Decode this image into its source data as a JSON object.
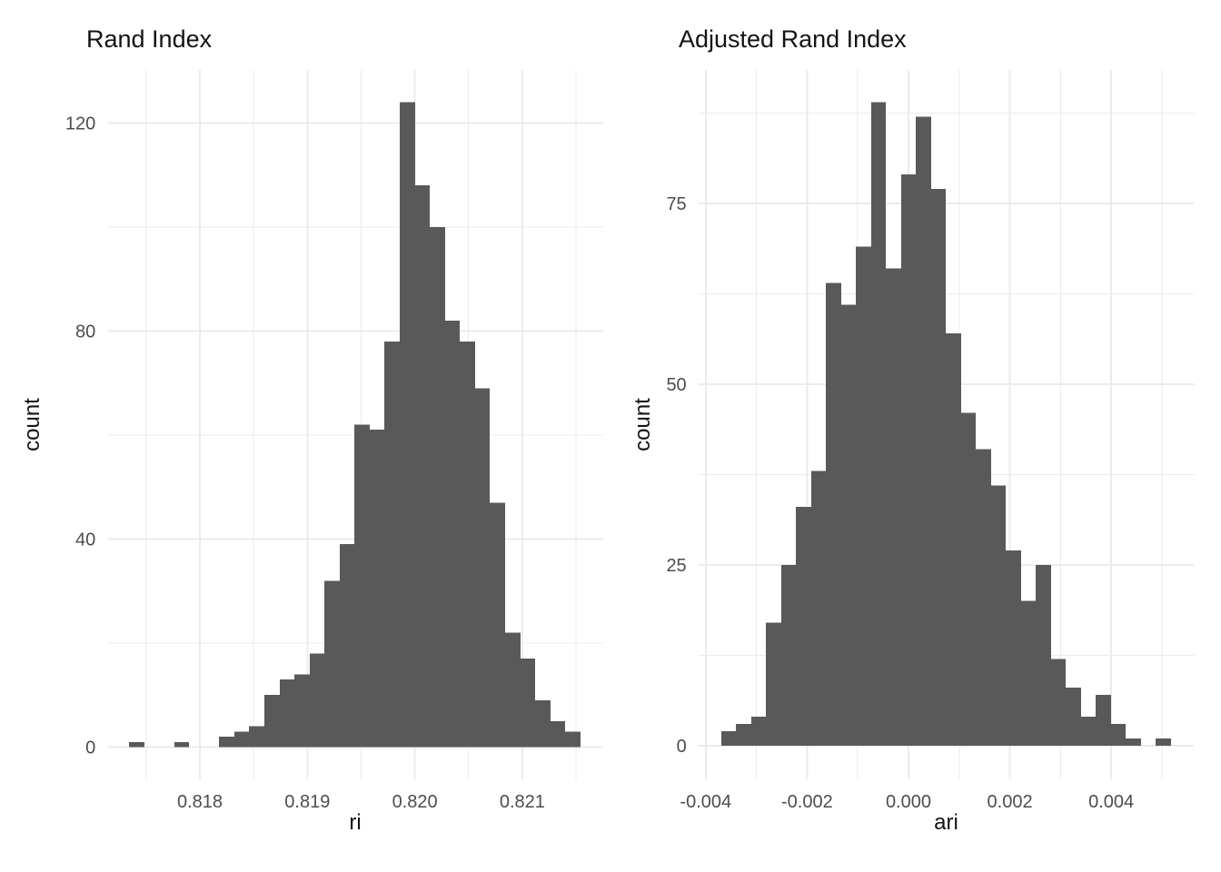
{
  "figure": {
    "background": "#FFFFFF",
    "description": "Two side-by-side histograms of clustering agreement metrics"
  },
  "style": {
    "bar_color": "#595959",
    "grid_color": "#EBEBEB",
    "tick_label_color": "#4D4D4D",
    "text_color": "#141414"
  },
  "chart_data": [
    {
      "type": "bar",
      "subtype": "histogram",
      "title": "Rand Index",
      "xlabel": "ri",
      "ylabel": "count",
      "grid": true,
      "legend_position": "none",
      "bin_start": 0.81734,
      "bin_width": 0.00014,
      "counts": [
        1,
        0,
        0,
        1,
        0,
        0,
        2,
        3,
        4,
        10,
        13,
        14,
        18,
        32,
        39,
        62,
        61,
        78,
        124,
        108,
        100,
        82,
        78,
        69,
        47,
        22,
        17,
        9,
        5,
        3
      ],
      "xlim": [
        0.81714,
        0.82175
      ],
      "ylim": [
        -6.2,
        130.2
      ],
      "x_ticks": [
        {
          "value": 0.818,
          "label": "0.818"
        },
        {
          "value": 0.819,
          "label": "0.819"
        },
        {
          "value": 0.82,
          "label": "0.820"
        },
        {
          "value": 0.821,
          "label": "0.821"
        }
      ],
      "x_minor": [
        0.8175,
        0.8185,
        0.8195,
        0.8205,
        0.8215
      ],
      "y_ticks": [
        {
          "value": 0,
          "label": "0"
        },
        {
          "value": 40,
          "label": "40"
        },
        {
          "value": 80,
          "label": "80"
        },
        {
          "value": 120,
          "label": "120"
        }
      ],
      "y_minor": [
        20,
        60,
        100
      ]
    },
    {
      "type": "bar",
      "subtype": "histogram",
      "title": "Adjusted Rand Index",
      "xlabel": "ari",
      "ylabel": "count",
      "grid": true,
      "legend_position": "none",
      "bin_start": -0.0037,
      "bin_width": 0.000296,
      "counts": [
        2,
        3,
        4,
        17,
        25,
        33,
        38,
        64,
        61,
        69,
        89,
        66,
        79,
        87,
        77,
        57,
        46,
        41,
        36,
        27,
        20,
        25,
        12,
        8,
        4,
        7,
        3,
        1,
        0,
        1
      ],
      "xlim": [
        -0.004145,
        0.005635
      ],
      "ylim": [
        -4.67,
        93.45
      ],
      "x_ticks": [
        {
          "value": -0.004,
          "label": "-0.004"
        },
        {
          "value": -0.002,
          "label": "-0.002"
        },
        {
          "value": 0.0,
          "label": "0.000"
        },
        {
          "value": 0.002,
          "label": "0.002"
        },
        {
          "value": 0.004,
          "label": "0.004"
        }
      ],
      "x_minor": [
        -0.003,
        -0.001,
        0.001,
        0.003,
        0.005
      ],
      "y_ticks": [
        {
          "value": 0,
          "label": "0"
        },
        {
          "value": 25,
          "label": "25"
        },
        {
          "value": 50,
          "label": "50"
        },
        {
          "value": 75,
          "label": "75"
        }
      ],
      "y_minor": [
        12.5,
        37.5,
        62.5,
        87.5
      ]
    }
  ]
}
